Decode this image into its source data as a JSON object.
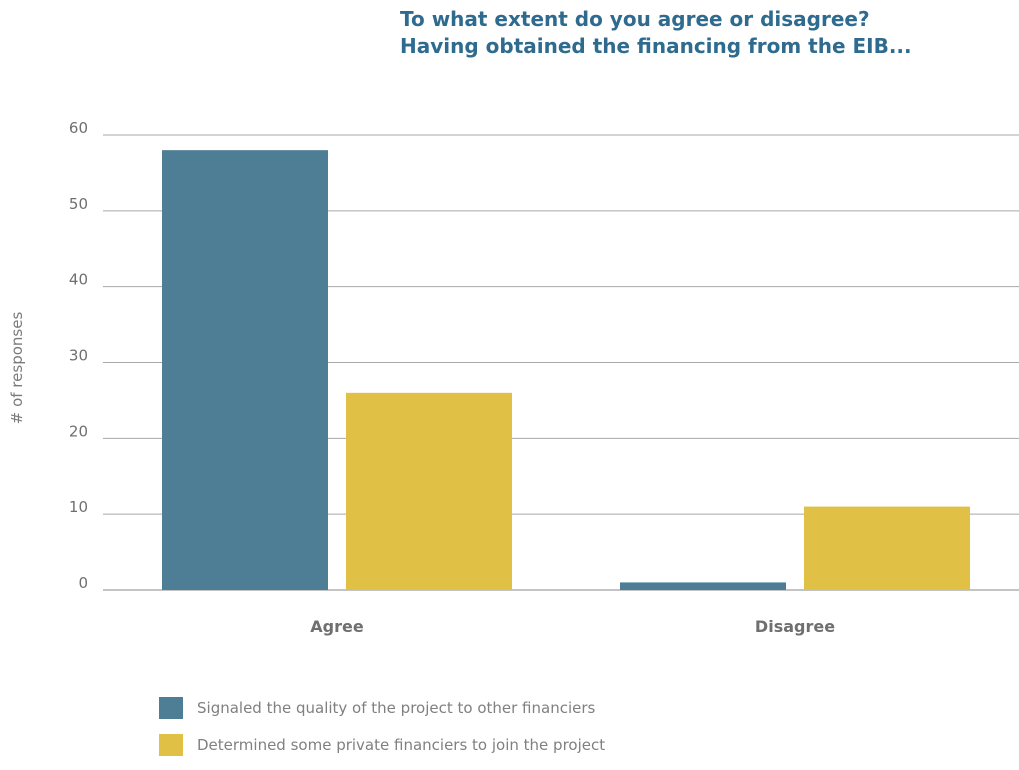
{
  "chart_data": {
    "type": "bar",
    "title_lines": [
      "To what extent do you agree or disagree?",
      "Having obtained the financing from the EIB..."
    ],
    "ylabel": "# of responses",
    "xlabel": "",
    "categories": [
      "Agree",
      "Disagree"
    ],
    "series": [
      {
        "name": "Signaled the quality of the project to other financiers",
        "values": [
          58,
          1
        ],
        "color": "#4e7d96"
      },
      {
        "name": "Determined some private financiers to join the project",
        "values": [
          26,
          11
        ],
        "color": "#e0c145"
      }
    ],
    "ylim": [
      0,
      65
    ],
    "yticks": [
      0,
      10,
      20,
      30,
      40,
      50,
      60
    ],
    "grid": true,
    "legend_position": "bottom-left"
  }
}
